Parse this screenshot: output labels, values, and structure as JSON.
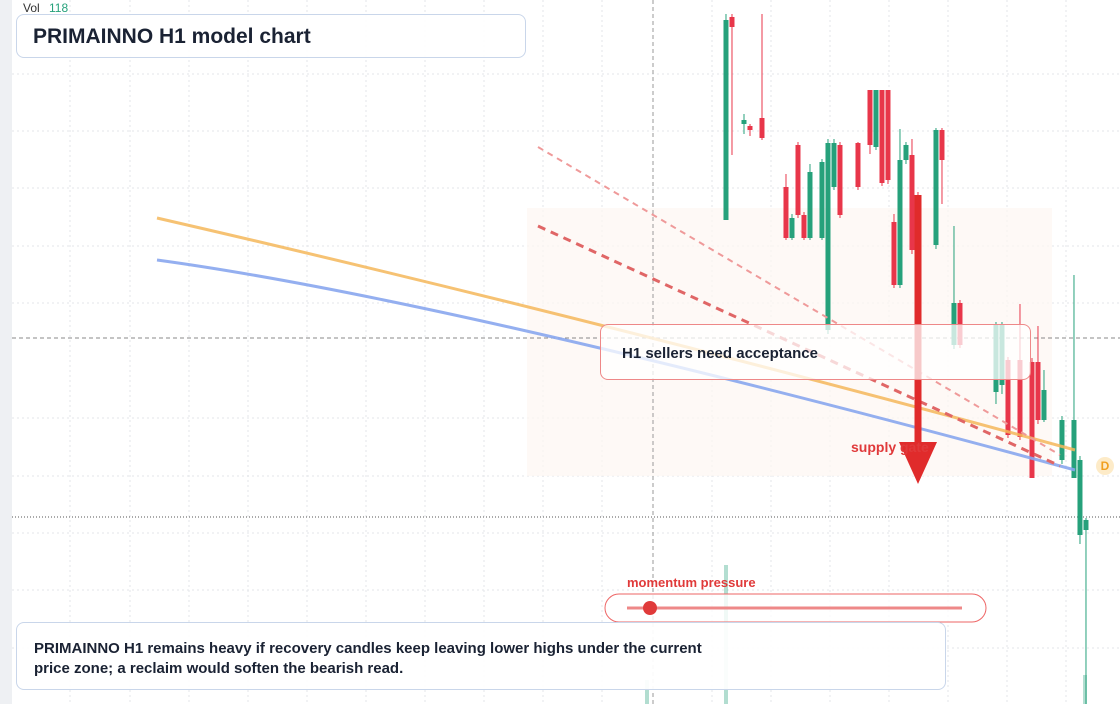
{
  "header": {
    "vol_label": "Vol",
    "vol_value": "118",
    "title": "PRIMAINNO H1 model chart"
  },
  "annotations": {
    "callout": "H1 sellers need acceptance",
    "zone": "supply gate",
    "momentum": "momentum pressure",
    "marker": "D",
    "summary": "PRIMAINNO H1 remains heavy if recovery candles keep leaving lower highs under the current price zone; a reclaim would soften the bearish read."
  },
  "chart_data": {
    "type": "candlestick",
    "up_color": "#26a17b",
    "down_color": "#e8364a",
    "xlim": [
      -119,
      65.67
    ],
    "ylim": [
      0,
      704
    ],
    "x": [
      0,
      1,
      3,
      4,
      6,
      10,
      11,
      12,
      13,
      14,
      16,
      17,
      18,
      19,
      22,
      24,
      25,
      26,
      27,
      28,
      29,
      30,
      31,
      32,
      35,
      36,
      38,
      39,
      45,
      46,
      47,
      49,
      51,
      52,
      53,
      56,
      58,
      59,
      60
    ],
    "open": [
      484,
      687,
      580,
      578,
      586,
      517,
      466,
      559,
      489,
      466,
      466,
      374,
      517,
      559,
      561,
      614,
      557,
      614,
      614,
      482,
      419,
      544,
      549,
      509,
      459,
      574,
      359,
      401,
      312,
      319,
      344,
      344,
      342,
      342,
      284,
      244,
      226,
      169,
      174
    ],
    "high": [
      690,
      690,
      590,
      580,
      690,
      530,
      490,
      562,
      492,
      540,
      545,
      565,
      565,
      562,
      562,
      614,
      614,
      614,
      614,
      490,
      575,
      562,
      565,
      512,
      576,
      576,
      478,
      404,
      382,
      382,
      347,
      400,
      346,
      378,
      334,
      288,
      429,
      248,
      186
    ],
    "low": [
      484,
      549,
      570,
      568,
      564,
      464,
      464,
      486,
      464,
      464,
      464,
      370,
      514,
      486,
      514,
      550,
      554,
      518,
      520,
      416,
      416,
      540,
      450,
      440,
      455,
      500,
      355,
      356,
      300,
      310,
      266,
      264,
      226,
      280,
      282,
      240,
      226,
      160,
      0
    ],
    "close": [
      684,
      677,
      584,
      574,
      566,
      466,
      486,
      489,
      466,
      532,
      542,
      561,
      561,
      489,
      517,
      559,
      614,
      521,
      524,
      419,
      544,
      559,
      454,
      454,
      574,
      544,
      401,
      359,
      379,
      379,
      269,
      267,
      226,
      284,
      314,
      284,
      284,
      244,
      184
    ]
  }
}
